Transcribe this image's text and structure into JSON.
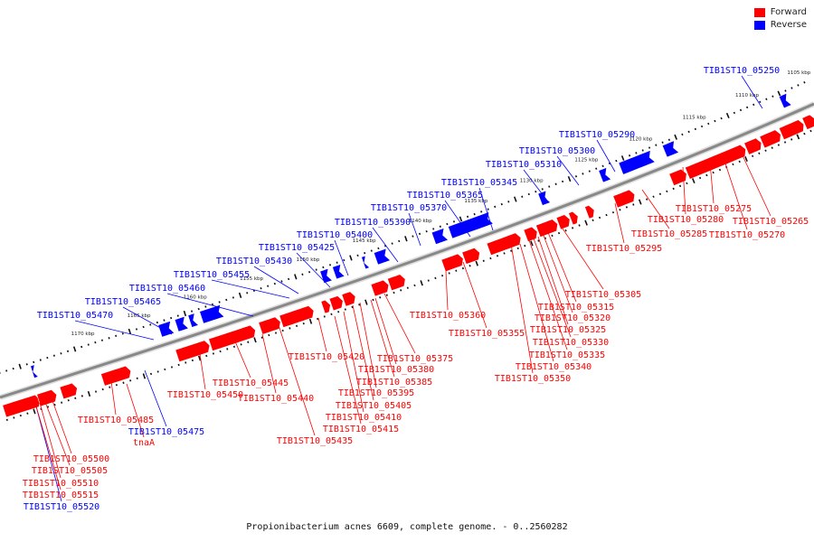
{
  "caption": "Propionibacterium acnes 6609, complete genome. - 0..2560282",
  "legend": [
    {
      "label": "Forward",
      "color": "#ff0000"
    },
    {
      "label": "Reverse",
      "color": "#0000ff"
    }
  ],
  "colors": {
    "forward": "#ff0000",
    "reverse": "#0000ff",
    "backbone": "#888888"
  },
  "ticks": [
    "1105 kbp",
    "1110 kbp",
    "1115 kbp",
    "1120 kbp",
    "1125 kbp",
    "1130 kbp",
    "1135 kbp",
    "1140 kbp",
    "1145 kbp",
    "1150 kbp",
    "1155 kbp",
    "1160 kbp",
    "1165 kbp",
    "1170 kbp"
  ],
  "labels": {
    "reverse": [
      "TIB1ST10_05250",
      "TIB1ST10_05290",
      "TIB1ST10_05300",
      "TIB1ST10_05310",
      "TIB1ST10_05345",
      "TIB1ST10_05365",
      "TIB1ST10_05370",
      "TIB1ST10_05390",
      "TIB1ST10_05400",
      "TIB1ST10_05425",
      "TIB1ST10_05430",
      "TIB1ST10_05455",
      "TIB1ST10_05460",
      "TIB1ST10_05465",
      "TIB1ST10_05470",
      "TIB1ST10_05475",
      "TIB1ST10_05520"
    ],
    "forward": [
      "TIB1ST10_05265",
      "TIB1ST10_05270",
      "TIB1ST10_05275",
      "TIB1ST10_05280",
      "TIB1ST10_05285",
      "TIB1ST10_05295",
      "TIB1ST10_05305",
      "TIB1ST10_05315",
      "TIB1ST10_05320",
      "TIB1ST10_05325",
      "TIB1ST10_05330",
      "TIB1ST10_05335",
      "TIB1ST10_05340",
      "TIB1ST10_05350",
      "TIB1ST10_05355",
      "TIB1ST10_05360",
      "TIB1ST10_05375",
      "TIB1ST10_05380",
      "TIB1ST10_05385",
      "TIB1ST10_05395",
      "TIB1ST10_05405",
      "TIB1ST10_05410",
      "TIB1ST10_05415",
      "TIB1ST10_05420",
      "TIB1ST10_05435",
      "TIB1ST10_05440",
      "TIB1ST10_05445",
      "TIB1ST10_05450",
      "TIB1ST10_05485",
      "tnaA",
      "TIB1ST10_05500",
      "TIB1ST10_05505",
      "TIB1ST10_05510",
      "TIB1ST10_05515"
    ]
  }
}
